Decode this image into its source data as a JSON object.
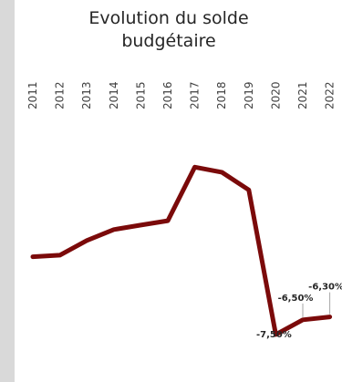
{
  "chart_data": {
    "type": "line",
    "title": "Evolution du solde budgétaire",
    "categories": [
      "2011",
      "2012",
      "2013",
      "2014",
      "2015",
      "2016",
      "2017",
      "2018",
      "2019",
      "2020",
      "2021",
      "2022"
    ],
    "series": [
      {
        "color": "#7b0a0a",
        "values": [
          -2.2,
          -2.1,
          -1.1,
          -0.35,
          -0.05,
          0.25,
          3.9,
          3.55,
          2.35,
          -7.5,
          -6.5,
          -6.3
        ]
      }
    ],
    "data_labels": [
      {
        "index": 9,
        "text": "-7,50%"
      },
      {
        "index": 10,
        "text": "-6,50%"
      },
      {
        "index": 11,
        "text": "-6,30%"
      }
    ],
    "ylim": [
      -8,
      4.6
    ],
    "grid": false,
    "legend": "none"
  }
}
